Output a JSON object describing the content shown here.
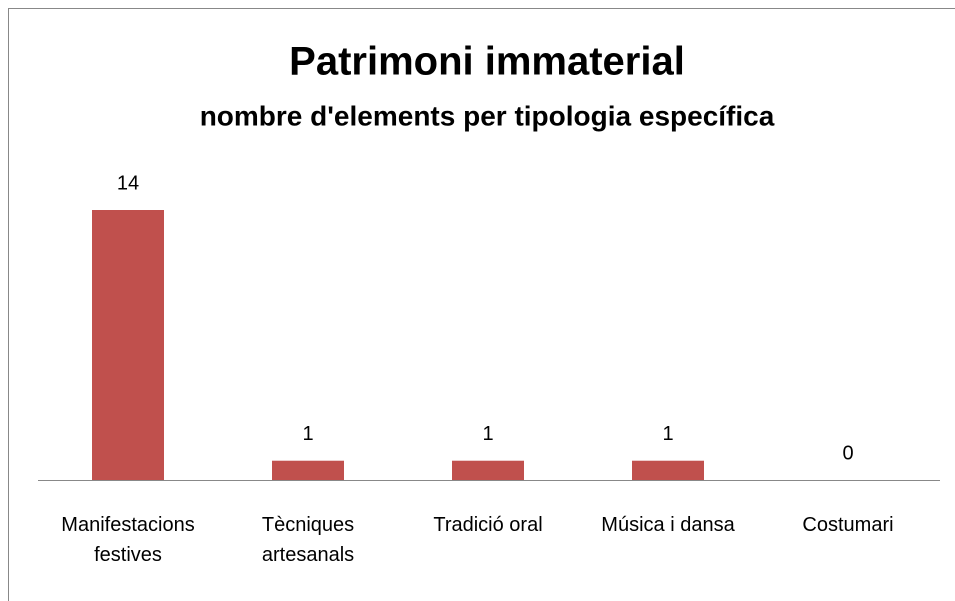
{
  "chart_data": {
    "type": "bar",
    "title": "Patrimoni immaterial",
    "subtitle": "nombre d'elements per tipologia específica",
    "categories": [
      "Manifestacions festives",
      "Tècniques artesanals",
      "Tradició oral",
      "Música i dansa",
      "Costumari"
    ],
    "values": [
      14,
      1,
      1,
      1,
      0
    ],
    "color": "#c0504d",
    "grid": false
  }
}
